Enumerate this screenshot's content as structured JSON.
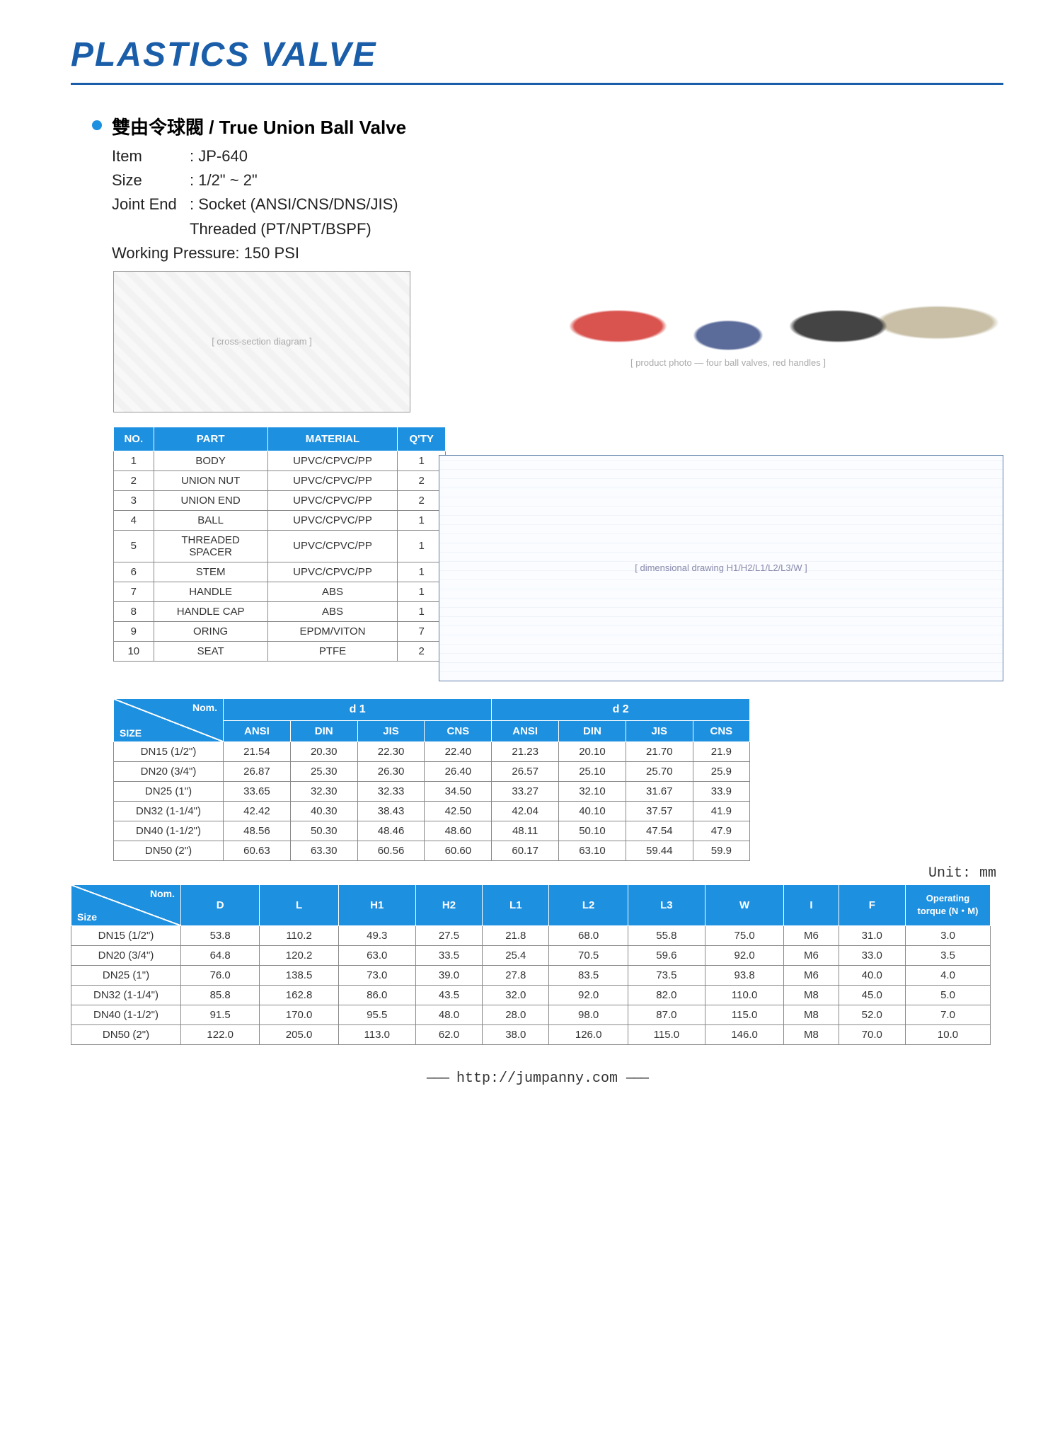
{
  "page_title": "PLASTICS VALVE",
  "product": {
    "title": "雙由令球閥 / True Union Ball Valve",
    "item_label": "Item",
    "item_value": ": JP-640",
    "size_label": "Size",
    "size_value": ": 1/2\" ~ 2\"",
    "joint_label": "Joint End",
    "joint_value1": ": Socket (ANSI/CNS/DNS/JIS)",
    "joint_value2": "Threaded (PT/NPT/BSPF)",
    "pressure": "Working Pressure: 150 PSI"
  },
  "parts_table": {
    "headers": [
      "NO.",
      "PART",
      "MATERIAL",
      "Q'TY"
    ],
    "rows": [
      [
        "1",
        "BODY",
        "UPVC/CPVC/PP",
        "1"
      ],
      [
        "2",
        "UNION NUT",
        "UPVC/CPVC/PP",
        "2"
      ],
      [
        "3",
        "UNION END",
        "UPVC/CPVC/PP",
        "2"
      ],
      [
        "4",
        "BALL",
        "UPVC/CPVC/PP",
        "1"
      ],
      [
        "5",
        "THREADED SPACER",
        "UPVC/CPVC/PP",
        "1"
      ],
      [
        "6",
        "STEM",
        "UPVC/CPVC/PP",
        "1"
      ],
      [
        "7",
        "HANDLE",
        "ABS",
        "1"
      ],
      [
        "8",
        "HANDLE CAP",
        "ABS",
        "1"
      ],
      [
        "9",
        "ORING",
        "EPDM/VITON",
        "7"
      ],
      [
        "10",
        "SEAT",
        "PTFE",
        "2"
      ]
    ]
  },
  "d1d2_table": {
    "nom_label": "Nom.",
    "size_label": "SIZE",
    "group1": "d 1",
    "group2": "d 2",
    "sub_headers": [
      "ANSI",
      "DIN",
      "JIS",
      "CNS",
      "ANSI",
      "DIN",
      "JIS",
      "CNS"
    ],
    "rows": [
      [
        "DN15 (1/2\")",
        "21.54",
        "20.30",
        "22.30",
        "22.40",
        "21.23",
        "20.10",
        "21.70",
        "21.9"
      ],
      [
        "DN20 (3/4\")",
        "26.87",
        "25.30",
        "26.30",
        "26.40",
        "26.57",
        "25.10",
        "25.70",
        "25.9"
      ],
      [
        "DN25 (1\")",
        "33.65",
        "32.30",
        "32.33",
        "34.50",
        "33.27",
        "32.10",
        "31.67",
        "33.9"
      ],
      [
        "DN32 (1-1/4\")",
        "42.42",
        "40.30",
        "38.43",
        "42.50",
        "42.04",
        "40.10",
        "37.57",
        "41.9"
      ],
      [
        "DN40 (1-1/2\")",
        "48.56",
        "50.30",
        "48.46",
        "48.60",
        "48.11",
        "50.10",
        "47.54",
        "47.9"
      ],
      [
        "DN50 (2\")",
        "60.63",
        "63.30",
        "60.56",
        "60.60",
        "60.17",
        "63.10",
        "59.44",
        "59.9"
      ]
    ]
  },
  "unit_label": "Unit: mm",
  "main_table": {
    "nom_label": "Nom.",
    "size_label": "Size",
    "headers": [
      "D",
      "L",
      "H1",
      "H2",
      "L1",
      "L2",
      "L3",
      "W",
      "I",
      "F",
      "Operating torque (N・M)"
    ],
    "rows": [
      [
        "DN15 (1/2\")",
        "53.8",
        "110.2",
        "49.3",
        "27.5",
        "21.8",
        "68.0",
        "55.8",
        "75.0",
        "M6",
        "31.0",
        "3.0"
      ],
      [
        "DN20 (3/4\")",
        "64.8",
        "120.2",
        "63.0",
        "33.5",
        "25.4",
        "70.5",
        "59.6",
        "92.0",
        "M6",
        "33.0",
        "3.5"
      ],
      [
        "DN25 (1\")",
        "76.0",
        "138.5",
        "73.0",
        "39.0",
        "27.8",
        "83.5",
        "73.5",
        "93.8",
        "M6",
        "40.0",
        "4.0"
      ],
      [
        "DN32 (1-1/4\")",
        "85.8",
        "162.8",
        "86.0",
        "43.5",
        "32.0",
        "92.0",
        "82.0",
        "110.0",
        "M8",
        "45.0",
        "5.0"
      ],
      [
        "DN40 (1-1/2\")",
        "91.5",
        "170.0",
        "95.5",
        "48.0",
        "28.0",
        "98.0",
        "87.0",
        "115.0",
        "M8",
        "52.0",
        "7.0"
      ],
      [
        "DN50 (2\")",
        "122.0",
        "205.0",
        "113.0",
        "62.0",
        "38.0",
        "126.0",
        "115.0",
        "146.0",
        "M8",
        "70.0",
        "10.0"
      ]
    ]
  },
  "footer_url": "http://jumpanny.com",
  "colors": {
    "brand_blue": "#1a5da8",
    "table_header": "#1e90e0",
    "border": "#888888"
  }
}
